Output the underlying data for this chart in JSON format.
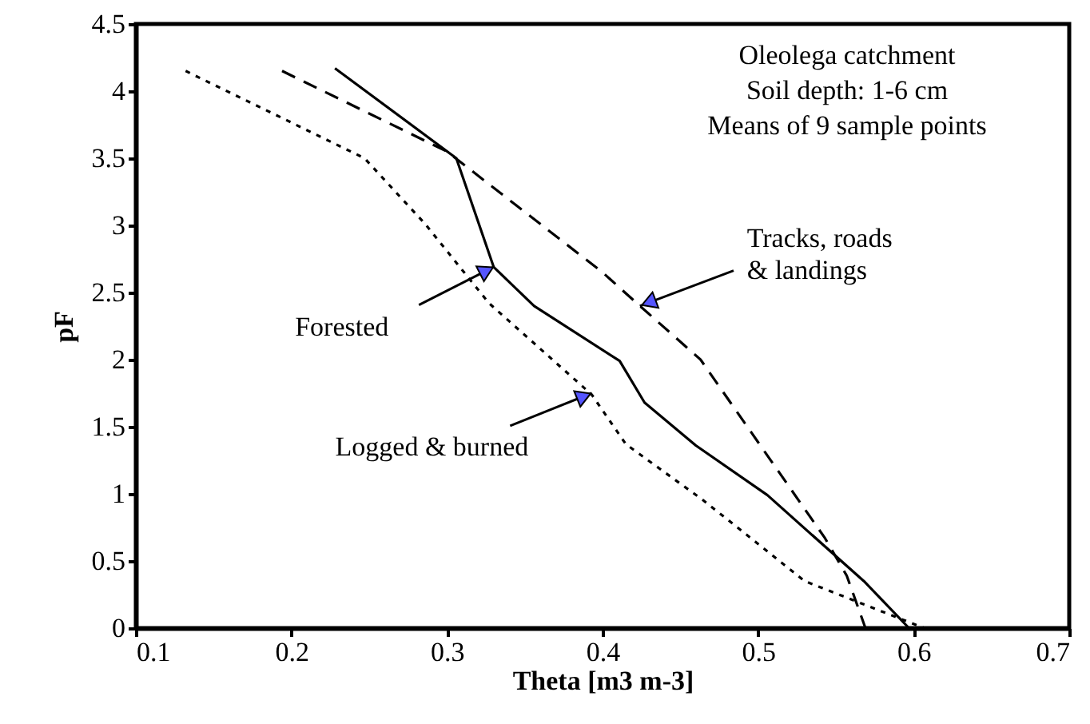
{
  "chart_data": {
    "type": "line",
    "xlabel": "Theta [m3 m-3]",
    "ylabel": "pF",
    "xlim": [
      0.1,
      0.7
    ],
    "xticks": [
      0.1,
      0.2,
      0.3,
      0.4,
      0.5,
      0.6,
      0.7
    ],
    "ylim": [
      0,
      4.5
    ],
    "yticks": [
      0,
      0.5,
      1,
      1.5,
      2,
      2.5,
      3,
      3.5,
      4,
      4.5
    ],
    "grid": false,
    "marker": "none",
    "series": [
      {
        "color": "#000000",
        "line_style": "solid",
        "x": [
          0.228,
          0.306,
          0.33,
          0.356,
          0.411,
          0.427,
          0.46,
          0.506,
          0.568,
          0.597
        ],
        "values": [
          4.17,
          3.5,
          2.69,
          2.4,
          1.99,
          1.68,
          1.36,
          0.99,
          0.35,
          0
        ]
      },
      {
        "color": "#000000",
        "line_style": "dashed",
        "x": [
          0.194,
          0.3,
          0.4,
          0.424,
          0.463,
          0.543,
          0.557,
          0.569
        ],
        "values": [
          4.15,
          3.55,
          2.65,
          2.4,
          2.0,
          0.67,
          0.39,
          0
        ]
      },
      {
        "color": "#000000",
        "line_style": "dotted",
        "x": [
          0.132,
          0.247,
          0.286,
          0.327,
          0.393,
          0.415,
          0.465,
          0.53,
          0.598,
          0.607
        ],
        "values": [
          4.15,
          3.5,
          3.01,
          2.42,
          1.74,
          1.37,
          0.95,
          0.35,
          0.04,
          0
        ]
      }
    ],
    "annotations": [
      "Oleolega catchment",
      "Soil depth: 1-6 cm",
      "Means of 9 sample points",
      {
        "text": "Forested",
        "x": 0.33,
        "y": 2.69
      },
      {
        "text": "Tracks, roads\n& landings",
        "x": 0.424,
        "y": 2.4
      },
      {
        "text": "Logged & burned",
        "x": 0.393,
        "y": 1.75
      }
    ]
  }
}
